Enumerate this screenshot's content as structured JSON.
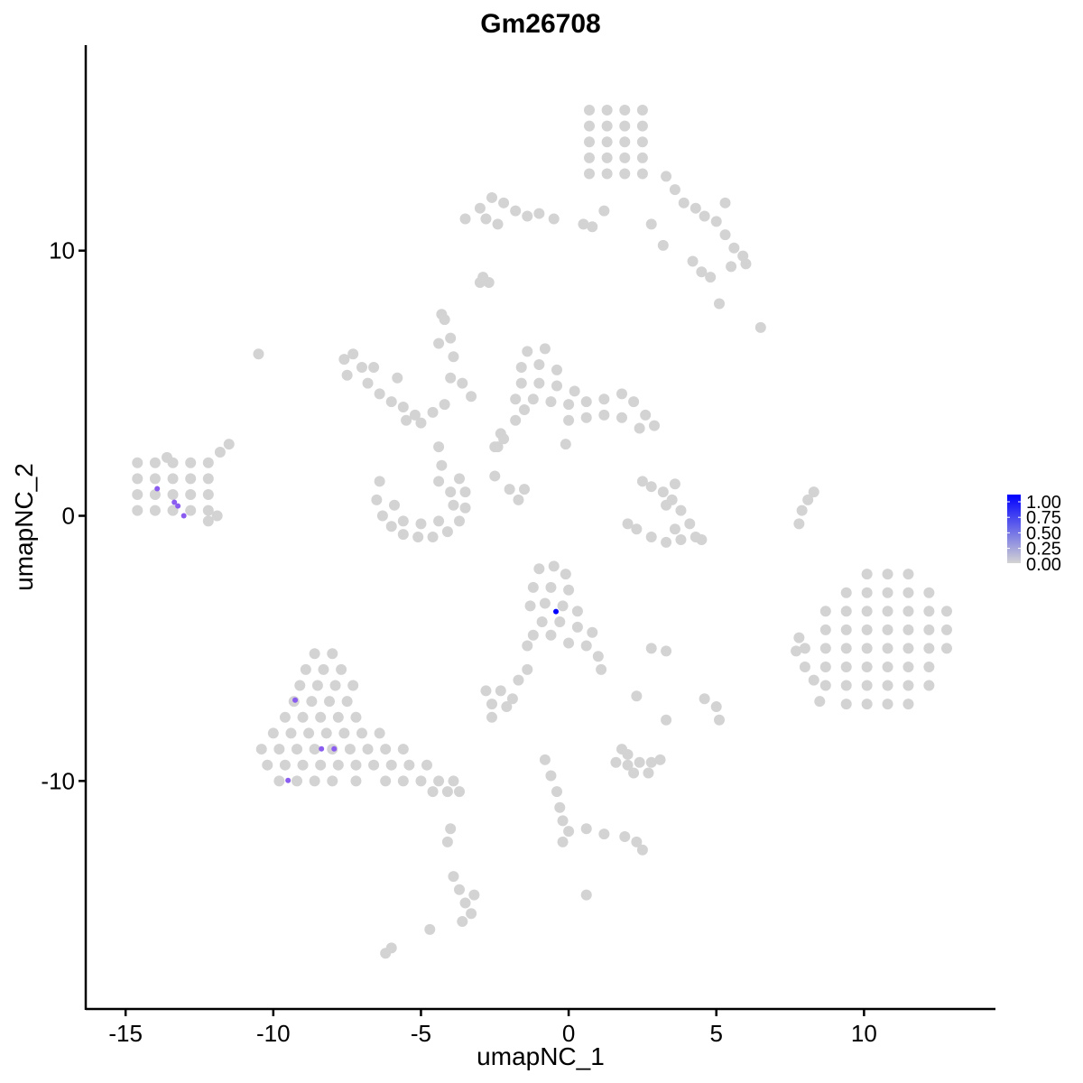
{
  "chart_data": {
    "type": "scatter",
    "title": "Gm26708",
    "xlabel": "umapNC_1",
    "ylabel": "umapNC_2",
    "xlim": [
      -16.35,
      14.45
    ],
    "ylim": [
      -18.6,
      17.75
    ],
    "xticks": [
      -15,
      -10,
      -5,
      0,
      5,
      10
    ],
    "yticks": [
      -10,
      0,
      10
    ],
    "grid": false,
    "color_low": "#D3D3D3",
    "color_high": "#0000FF",
    "legend": {
      "placement": "right",
      "labels": [
        "1.00",
        "0.75",
        "0.50",
        "0.25",
        "0.00"
      ],
      "range": [
        0,
        1
      ]
    },
    "expressed_points": [
      {
        "x": -13.93,
        "y": 1.02,
        "value": 0.5
      },
      {
        "x": -13.35,
        "y": 0.51,
        "value": 0.5
      },
      {
        "x": -13.23,
        "y": 0.37,
        "value": 0.5
      },
      {
        "x": -13.03,
        "y": 0.0,
        "value": 0.5
      },
      {
        "x": -9.26,
        "y": -6.95,
        "value": 0.5
      },
      {
        "x": -8.37,
        "y": -8.79,
        "value": 0.5
      },
      {
        "x": -7.94,
        "y": -8.79,
        "value": 0.5
      },
      {
        "x": -9.5,
        "y": -9.98,
        "value": 0.5
      },
      {
        "x": -0.43,
        "y": -3.61,
        "value": 1.0
      }
    ],
    "zero_points": [
      [
        0.7,
        15.3
      ],
      [
        1.3,
        15.3
      ],
      [
        1.9,
        15.3
      ],
      [
        2.5,
        15.3
      ],
      [
        0.7,
        14.7
      ],
      [
        1.3,
        14.7
      ],
      [
        1.9,
        14.7
      ],
      [
        2.5,
        14.7
      ],
      [
        0.7,
        14.1
      ],
      [
        1.3,
        14.1
      ],
      [
        1.9,
        14.1
      ],
      [
        2.5,
        14.1
      ],
      [
        0.7,
        13.5
      ],
      [
        1.3,
        13.5
      ],
      [
        1.9,
        13.5
      ],
      [
        2.5,
        13.5
      ],
      [
        0.7,
        12.9
      ],
      [
        1.3,
        12.9
      ],
      [
        1.9,
        12.9
      ],
      [
        2.5,
        12.9
      ],
      [
        3.3,
        12.8
      ],
      [
        3.6,
        12.3
      ],
      [
        3.9,
        11.8
      ],
      [
        4.3,
        11.6
      ],
      [
        4.6,
        11.3
      ],
      [
        5,
        11.1
      ],
      [
        5.3,
        10.6
      ],
      [
        5.6,
        10.1
      ],
      [
        5.9,
        9.8
      ],
      [
        6,
        9.5
      ],
      [
        5.5,
        9.4
      ],
      [
        4.5,
        9.2
      ],
      [
        4.2,
        9.6
      ],
      [
        4.8,
        9.0
      ],
      [
        5.3,
        11.8
      ],
      [
        3.2,
        10.2
      ],
      [
        2.8,
        11
      ],
      [
        1.2,
        11.5
      ],
      [
        0.8,
        10.9
      ],
      [
        0.5,
        11.0
      ],
      [
        6.5,
        7.1
      ],
      [
        5.1,
        8.0
      ],
      [
        -3.5,
        11.2
      ],
      [
        -3.0,
        11.6
      ],
      [
        -2.6,
        12.0
      ],
      [
        -2.2,
        11.8
      ],
      [
        -2.8,
        11.2
      ],
      [
        -1.8,
        11.5
      ],
      [
        -1.4,
        11.3
      ],
      [
        -1.0,
        11.4
      ],
      [
        -0.5,
        11.2
      ],
      [
        -2.4,
        11.0
      ],
      [
        -2.9,
        9.0
      ],
      [
        -2.7,
        8.8
      ],
      [
        -14.6,
        2.0
      ],
      [
        -14.0,
        2.0
      ],
      [
        -13.4,
        2.0
      ],
      [
        -12.8,
        2.0
      ],
      [
        -12.2,
        2.0
      ],
      [
        -14.6,
        1.4
      ],
      [
        -14.0,
        1.4
      ],
      [
        -13.4,
        1.4
      ],
      [
        -12.8,
        1.4
      ],
      [
        -12.2,
        1.4
      ],
      [
        -14.6,
        0.8
      ],
      [
        -14.0,
        0.8
      ],
      [
        -13.4,
        0.8
      ],
      [
        -12.8,
        0.8
      ],
      [
        -12.2,
        0.8
      ],
      [
        -14.6,
        0.2
      ],
      [
        -14.0,
        0.2
      ],
      [
        -13.4,
        0.2
      ],
      [
        -12.8,
        0.2
      ],
      [
        -12.2,
        0.2
      ],
      [
        -11.8,
        2.4
      ],
      [
        -11.5,
        2.7
      ],
      [
        -12.2,
        -0.2
      ],
      [
        -11.9,
        0.0
      ],
      [
        -13.6,
        2.2
      ],
      [
        -10.5,
        6.1
      ],
      [
        -7.6,
        5.9
      ],
      [
        -7.3,
        6.1
      ],
      [
        -7.0,
        5.6
      ],
      [
        -7.5,
        5.3
      ],
      [
        -6.8,
        5.0
      ],
      [
        -6.4,
        4.6
      ],
      [
        -6.0,
        4.3
      ],
      [
        -5.6,
        4.1
      ],
      [
        -5.2,
        3.8
      ],
      [
        -5.0,
        3.5
      ],
      [
        -6.6,
        5.6
      ],
      [
        -5.8,
        5.2
      ],
      [
        -5.5,
        3.6
      ],
      [
        -4.6,
        3.9
      ],
      [
        -4.2,
        4.2
      ],
      [
        -4.0,
        5.2
      ],
      [
        -4.4,
        6.5
      ],
      [
        -4.2,
        7.4
      ],
      [
        -3.9,
        6.0
      ],
      [
        -3.6,
        5.0
      ],
      [
        -3.3,
        4.5
      ],
      [
        -4.4,
        2.6
      ],
      [
        -4.3,
        1.9
      ],
      [
        -4.4,
        1.3
      ],
      [
        -4.0,
        0.9
      ],
      [
        -6.4,
        1.3
      ],
      [
        -6.5,
        0.6
      ],
      [
        -6.3,
        0.0
      ],
      [
        -6.0,
        -0.4
      ],
      [
        -5.6,
        -0.7
      ],
      [
        -5.1,
        -0.8
      ],
      [
        -4.6,
        -0.8
      ],
      [
        -4.1,
        -0.6
      ],
      [
        -3.7,
        -0.2
      ],
      [
        -3.5,
        0.3
      ],
      [
        -3.5,
        0.9
      ],
      [
        -3.7,
        1.4
      ],
      [
        -5.6,
        -0.2
      ],
      [
        -5.0,
        -0.3
      ],
      [
        -4.4,
        -0.2
      ],
      [
        -5.9,
        0.4
      ],
      [
        -3.9,
        0.4
      ],
      [
        -2.5,
        1.5
      ],
      [
        -2.0,
        1.0
      ],
      [
        -1.7,
        0.6
      ],
      [
        -2.4,
        2.6
      ],
      [
        -2.3,
        3.1
      ],
      [
        -1.4,
        6.2
      ],
      [
        -0.8,
        6.3
      ],
      [
        -1.6,
        5.6
      ],
      [
        -1.0,
        5.7
      ],
      [
        -0.4,
        5.5
      ],
      [
        -1.6,
        5.0
      ],
      [
        -1.0,
        5.0
      ],
      [
        -0.4,
        4.9
      ],
      [
        0.2,
        4.7
      ],
      [
        -1.8,
        4.4
      ],
      [
        -1.2,
        4.4
      ],
      [
        -0.6,
        4.3
      ],
      [
        0.0,
        4.2
      ],
      [
        0.6,
        4.3
      ],
      [
        1.2,
        4.4
      ],
      [
        1.8,
        4.6
      ],
      [
        2.2,
        4.3
      ],
      [
        2.6,
        3.8
      ],
      [
        2.4,
        3.3
      ],
      [
        1.8,
        3.7
      ],
      [
        1.2,
        3.8
      ],
      [
        0.6,
        3.7
      ],
      [
        0.0,
        3.6
      ],
      [
        -1.8,
        3.6
      ],
      [
        -2.2,
        2.9
      ],
      [
        -2.5,
        2.6
      ],
      [
        -1.5,
        4.0
      ],
      [
        2.9,
        3.4
      ],
      [
        2.5,
        1.3
      ],
      [
        2.8,
        1.1
      ],
      [
        3.2,
        0.9
      ],
      [
        3.5,
        0.6
      ],
      [
        3.8,
        0.2
      ],
      [
        4.1,
        -0.3
      ],
      [
        4.3,
        -0.8
      ],
      [
        3.8,
        -0.9
      ],
      [
        3.3,
        -1.0
      ],
      [
        2.8,
        -0.8
      ],
      [
        2.3,
        -0.5
      ],
      [
        2.0,
        -0.3
      ],
      [
        3.6,
        -0.5
      ],
      [
        4.5,
        -0.9
      ],
      [
        3.6,
        1.2
      ],
      [
        3.3,
        0.4
      ],
      [
        7.8,
        -0.3
      ],
      [
        7.9,
        0.2
      ],
      [
        8.1,
        0.6
      ],
      [
        8.3,
        0.9
      ],
      [
        10.1,
        -2.2
      ],
      [
        10.8,
        -2.2
      ],
      [
        11.5,
        -2.2
      ],
      [
        9.4,
        -2.9
      ],
      [
        10.1,
        -2.9
      ],
      [
        10.8,
        -2.9
      ],
      [
        11.5,
        -2.9
      ],
      [
        12.2,
        -2.9
      ],
      [
        8.7,
        -3.6
      ],
      [
        9.4,
        -3.6
      ],
      [
        10.1,
        -3.6
      ],
      [
        10.8,
        -3.6
      ],
      [
        11.5,
        -3.6
      ],
      [
        12.2,
        -3.6
      ],
      [
        12.8,
        -3.6
      ],
      [
        8.7,
        -4.3
      ],
      [
        9.4,
        -4.3
      ],
      [
        10.1,
        -4.3
      ],
      [
        10.8,
        -4.3
      ],
      [
        11.5,
        -4.3
      ],
      [
        12.2,
        -4.3
      ],
      [
        12.8,
        -4.3
      ],
      [
        8.0,
        -5.0
      ],
      [
        8.7,
        -5.0
      ],
      [
        9.4,
        -5.0
      ],
      [
        10.1,
        -5.0
      ],
      [
        10.8,
        -5.0
      ],
      [
        11.5,
        -5.0
      ],
      [
        12.2,
        -5.0
      ],
      [
        12.8,
        -5.0
      ],
      [
        8.0,
        -5.7
      ],
      [
        8.7,
        -5.7
      ],
      [
        9.4,
        -5.7
      ],
      [
        10.1,
        -5.7
      ],
      [
        10.8,
        -5.7
      ],
      [
        11.5,
        -5.7
      ],
      [
        12.2,
        -5.7
      ],
      [
        8.7,
        -6.4
      ],
      [
        9.4,
        -6.4
      ],
      [
        10.1,
        -6.4
      ],
      [
        10.8,
        -6.4
      ],
      [
        11.5,
        -6.4
      ],
      [
        12.2,
        -6.4
      ],
      [
        9.4,
        -7.1
      ],
      [
        10.1,
        -7.1
      ],
      [
        10.8,
        -7.1
      ],
      [
        11.5,
        -7.1
      ],
      [
        7.8,
        -4.6
      ],
      [
        7.7,
        -5.1
      ],
      [
        8.3,
        -6.2
      ],
      [
        8.5,
        -7.0
      ],
      [
        -1.0,
        -2.0
      ],
      [
        -0.5,
        -1.9
      ],
      [
        -0.1,
        -2.2
      ],
      [
        -1.2,
        -2.7
      ],
      [
        -0.6,
        -2.7
      ],
      [
        0.0,
        -2.8
      ],
      [
        -1.3,
        -3.4
      ],
      [
        -0.8,
        -3.3
      ],
      [
        -0.2,
        -3.4
      ],
      [
        0.3,
        -3.6
      ],
      [
        -0.9,
        -4.0
      ],
      [
        -0.3,
        -4.0
      ],
      [
        0.3,
        -4.2
      ],
      [
        -1.2,
        -4.5
      ],
      [
        -0.6,
        -4.5
      ],
      [
        0.0,
        -4.8
      ],
      [
        0.6,
        -4.9
      ],
      [
        1.0,
        -5.3
      ],
      [
        1.1,
        -5.8
      ],
      [
        -1.4,
        -4.9
      ],
      [
        0.8,
        -4.4
      ],
      [
        -8.6,
        -5.2
      ],
      [
        -8.0,
        -5.2
      ],
      [
        -8.9,
        -5.8
      ],
      [
        -8.3,
        -5.8
      ],
      [
        -7.7,
        -5.8
      ],
      [
        -9.1,
        -6.4
      ],
      [
        -8.5,
        -6.4
      ],
      [
        -7.9,
        -6.4
      ],
      [
        -7.3,
        -6.4
      ],
      [
        -9.3,
        -7.0
      ],
      [
        -8.7,
        -7.0
      ],
      [
        -8.1,
        -7.0
      ],
      [
        -7.5,
        -7.0
      ],
      [
        -9.6,
        -7.6
      ],
      [
        -9.0,
        -7.6
      ],
      [
        -8.4,
        -7.6
      ],
      [
        -7.8,
        -7.6
      ],
      [
        -7.2,
        -7.6
      ],
      [
        -10.0,
        -8.2
      ],
      [
        -9.4,
        -8.2
      ],
      [
        -8.8,
        -8.2
      ],
      [
        -8.2,
        -8.2
      ],
      [
        -7.6,
        -8.2
      ],
      [
        -7.0,
        -8.2
      ],
      [
        -6.4,
        -8.2
      ],
      [
        -10.4,
        -8.8
      ],
      [
        -9.8,
        -8.8
      ],
      [
        -9.2,
        -8.8
      ],
      [
        -8.6,
        -8.8
      ],
      [
        -8.0,
        -8.8
      ],
      [
        -7.4,
        -8.8
      ],
      [
        -6.8,
        -8.8
      ],
      [
        -6.2,
        -8.8
      ],
      [
        -5.6,
        -8.8
      ],
      [
        -10.2,
        -9.4
      ],
      [
        -9.6,
        -9.4
      ],
      [
        -9.0,
        -9.4
      ],
      [
        -8.4,
        -9.4
      ],
      [
        -7.8,
        -9.4
      ],
      [
        -7.2,
        -9.4
      ],
      [
        -6.6,
        -9.4
      ],
      [
        -6.0,
        -9.4
      ],
      [
        -5.4,
        -9.4
      ],
      [
        -4.8,
        -9.4
      ],
      [
        -9.8,
        -10.0
      ],
      [
        -9.2,
        -10.0
      ],
      [
        -8.6,
        -10.0
      ],
      [
        -8.0,
        -10.0
      ],
      [
        -7.2,
        -10.0
      ],
      [
        -6.2,
        -10.0
      ],
      [
        -5.6,
        -10.0
      ],
      [
        -5.0,
        -10.0
      ],
      [
        -4.4,
        -10.0
      ],
      [
        -3.9,
        -10.0
      ],
      [
        -4.6,
        -10.4
      ],
      [
        -4.1,
        -10.4
      ],
      [
        -3.7,
        -10.4
      ],
      [
        -2.8,
        -6.6
      ],
      [
        -2.3,
        -6.6
      ],
      [
        -1.9,
        -6.9
      ],
      [
        -2.6,
        -7.1
      ],
      [
        -2.1,
        -7.2
      ],
      [
        -2.6,
        -7.6
      ],
      [
        -1.7,
        -6.2
      ],
      [
        -1.4,
        -5.8
      ],
      [
        2.8,
        -5.0
      ],
      [
        3.3,
        -5.1
      ],
      [
        4.6,
        -6.9
      ],
      [
        5.0,
        -7.2
      ],
      [
        5.1,
        -7.7
      ],
      [
        3.3,
        -7.7
      ],
      [
        2.3,
        -6.8
      ],
      [
        -0.8,
        -9.2
      ],
      [
        -0.6,
        -9.8
      ],
      [
        -0.4,
        -10.4
      ],
      [
        -0.3,
        -11.0
      ],
      [
        -0.2,
        -11.5
      ],
      [
        0.0,
        -11.9
      ],
      [
        -0.2,
        -12.3
      ],
      [
        0.6,
        -11.8
      ],
      [
        1.2,
        -12.0
      ],
      [
        1.6,
        -9.3
      ],
      [
        2.0,
        -9.4
      ],
      [
        2.4,
        -9.3
      ],
      [
        2.8,
        -9.3
      ],
      [
        3.1,
        -9.2
      ],
      [
        2.2,
        -9.7
      ],
      [
        2.7,
        -9.7
      ],
      [
        2.0,
        -9.0
      ],
      [
        1.8,
        -8.8
      ],
      [
        1.9,
        -12.1
      ],
      [
        2.3,
        -12.3
      ],
      [
        2.5,
        -12.6
      ],
      [
        0.6,
        -14.3
      ],
      [
        -3.9,
        -13.6
      ],
      [
        -3.7,
        -14.1
      ],
      [
        -3.5,
        -14.6
      ],
      [
        -3.3,
        -15.0
      ],
      [
        -3.6,
        -15.3
      ],
      [
        -3.2,
        -14.3
      ],
      [
        -4.0,
        -11.8
      ],
      [
        -4.1,
        -12.3
      ],
      [
        -4.7,
        -15.6
      ],
      [
        -6.0,
        -16.3
      ],
      [
        -6.2,
        -16.5
      ],
      [
        -4.3,
        7.6
      ],
      [
        -4.0,
        6.7
      ],
      [
        -0.1,
        2.7
      ],
      [
        -1.5,
        1.0
      ],
      [
        -3.0,
        8.8
      ]
    ]
  }
}
